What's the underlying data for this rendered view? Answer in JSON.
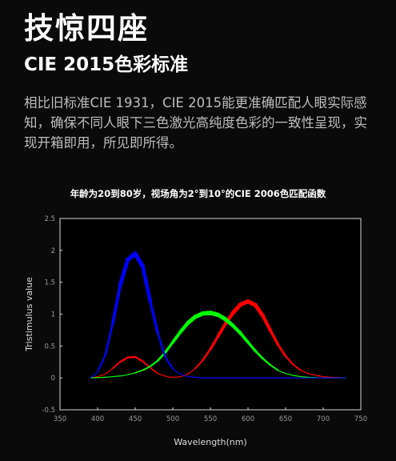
{
  "header": {
    "title": "技惊四座",
    "subtitle": "CIE 2015色彩标准",
    "description": "相比旧标准CIE 1931，CIE 2015能更准确匹配人眼实际感知，确保不同人眼下三色激光高纯度色彩的一致性呈现，实现开箱即用，所见即所得。"
  },
  "chart_data": {
    "type": "line",
    "title": "年龄为20到80岁，视场角为2°到10°的CIE 2006色匹配函数",
    "xlabel": "Wavelength(nm)",
    "ylabel": "Tristimulus value",
    "xlim": [
      350,
      750
    ],
    "ylim": [
      -0.5,
      2.5
    ],
    "x_ticks": [
      350,
      400,
      450,
      500,
      550,
      600,
      650,
      700,
      750
    ],
    "y_ticks": [
      -0.5,
      0,
      0.5,
      1,
      1.5,
      2,
      2.5
    ],
    "y_tick_labels": [
      "-0.5",
      "0",
      "0.5",
      "1",
      "1.5",
      "2",
      "2.5"
    ],
    "background": "#000000",
    "frame_color": "#d8d8d8",
    "x": [
      390,
      400,
      410,
      420,
      430,
      440,
      450,
      460,
      470,
      480,
      490,
      500,
      510,
      520,
      530,
      540,
      550,
      560,
      570,
      580,
      590,
      600,
      610,
      620,
      630,
      640,
      650,
      660,
      670,
      680,
      690,
      700,
      710,
      720,
      730
    ],
    "series": [
      {
        "color": "#ff0000",
        "values": [
          0.0,
          0.02,
          0.06,
          0.15,
          0.25,
          0.32,
          0.33,
          0.26,
          0.16,
          0.07,
          0.03,
          0.01,
          0.02,
          0.06,
          0.15,
          0.28,
          0.45,
          0.65,
          0.85,
          1.02,
          1.15,
          1.2,
          1.14,
          0.97,
          0.74,
          0.52,
          0.34,
          0.21,
          0.12,
          0.07,
          0.04,
          0.02,
          0.01,
          0.005,
          0.0
        ]
      },
      {
        "color": "#00ff00",
        "values": [
          0.0,
          0.005,
          0.01,
          0.02,
          0.03,
          0.05,
          0.08,
          0.12,
          0.18,
          0.27,
          0.4,
          0.56,
          0.72,
          0.86,
          0.96,
          1.01,
          1.02,
          0.99,
          0.92,
          0.82,
          0.7,
          0.56,
          0.42,
          0.3,
          0.2,
          0.12,
          0.07,
          0.04,
          0.02,
          0.01,
          0.005,
          0.0,
          0.0,
          0.0,
          0.0
        ]
      },
      {
        "color": "#0000ff",
        "values": [
          0.0,
          0.1,
          0.35,
          0.85,
          1.45,
          1.85,
          1.95,
          1.75,
          1.2,
          0.7,
          0.33,
          0.15,
          0.06,
          0.02,
          0.01,
          0.0,
          0.0,
          0.0,
          0.0,
          0.0,
          0.0,
          0.0,
          0.0,
          0.0,
          0.0,
          0.0,
          0.0,
          0.0,
          0.0,
          0.0,
          0.0,
          0.0,
          0.0,
          0.0,
          0.0
        ]
      }
    ],
    "grid": false,
    "legend": "none"
  }
}
